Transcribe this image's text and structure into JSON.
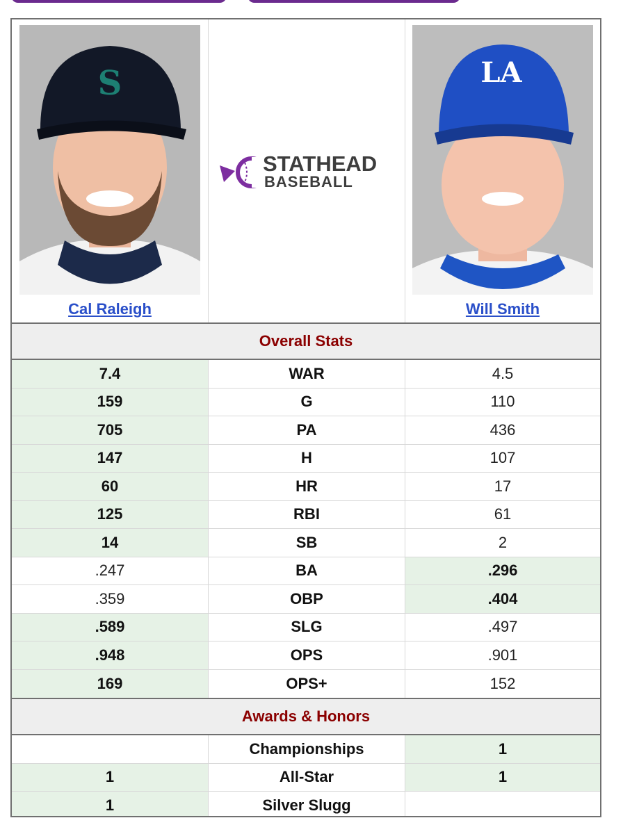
{
  "players": {
    "left": {
      "name": "Cal Raleigh"
    },
    "right": {
      "name": "Will Smith"
    }
  },
  "logo": {
    "line1": "STATHEAD",
    "line2": "BASEBALL"
  },
  "sections": {
    "overall": "Overall Stats",
    "awards": "Awards & Honors"
  },
  "stats": [
    {
      "label": "WAR",
      "left": "7.4",
      "right": "4.5",
      "winner": "left"
    },
    {
      "label": "G",
      "left": "159",
      "right": "110",
      "winner": "left"
    },
    {
      "label": "PA",
      "left": "705",
      "right": "436",
      "winner": "left"
    },
    {
      "label": "H",
      "left": "147",
      "right": "107",
      "winner": "left"
    },
    {
      "label": "HR",
      "left": "60",
      "right": "17",
      "winner": "left"
    },
    {
      "label": "RBI",
      "left": "125",
      "right": "61",
      "winner": "left"
    },
    {
      "label": "SB",
      "left": "14",
      "right": "2",
      "winner": "left"
    },
    {
      "label": "BA",
      "left": ".247",
      "right": ".296",
      "winner": "right"
    },
    {
      "label": "OBP",
      "left": ".359",
      "right": ".404",
      "winner": "right"
    },
    {
      "label": "SLG",
      "left": ".589",
      "right": ".497",
      "winner": "left"
    },
    {
      "label": "OPS",
      "left": ".948",
      "right": ".901",
      "winner": "left"
    },
    {
      "label": "OPS+",
      "left": "169",
      "right": "152",
      "winner": "left"
    }
  ],
  "awards": [
    {
      "label": "Championships",
      "left": "",
      "right": "1",
      "winner": "right"
    },
    {
      "label": "All-Star",
      "left": "1",
      "right": "1",
      "winner": "both"
    },
    {
      "label": "Silver Slugg",
      "left": "1",
      "right": "",
      "winner": "left"
    }
  ],
  "colors": {
    "highlight": "#e6f2e6",
    "section_text": "#8b0000",
    "link": "#2a4fc9",
    "brand_purple": "#6b2a8e"
  }
}
